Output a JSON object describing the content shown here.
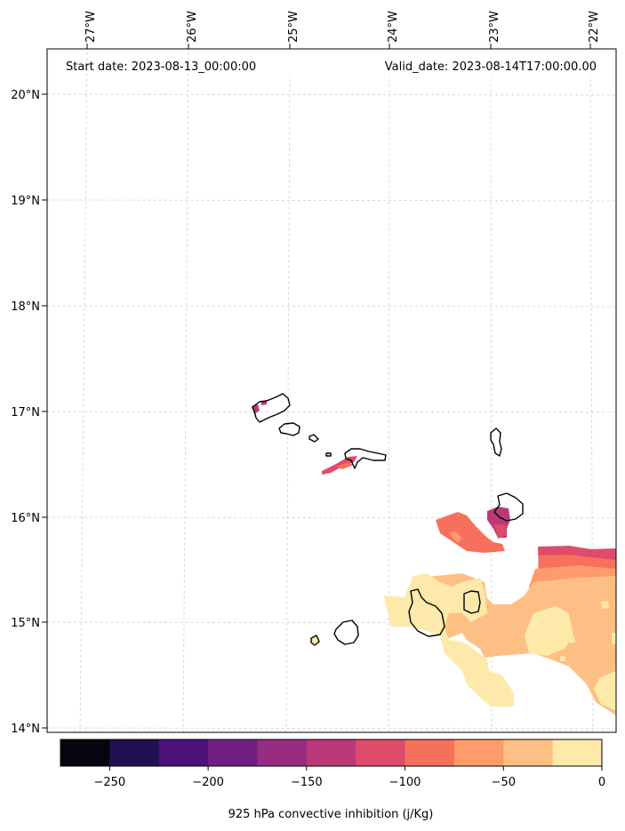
{
  "header": {
    "start_date": "Start date: 2023-08-13_00:00:00",
    "valid_date": "Valid_date: 2023-08-14T17:00:00.00"
  },
  "axes": {
    "lon_ticks": [
      "27°W",
      "26°W",
      "25°W",
      "24°W",
      "23°W",
      "22°W"
    ],
    "lat_ticks": [
      "20°N",
      "19°N",
      "18°N",
      "17°N",
      "16°N",
      "15°N",
      "14°N"
    ],
    "grid": true
  },
  "colorbar": {
    "label": "925 hPa convective inhibition (j/Kg)",
    "tick_labels": [
      "−250",
      "−200",
      "−150",
      "−100",
      "−50",
      "0"
    ],
    "range": [
      -275,
      0
    ],
    "levels": [
      -275,
      -250,
      -225,
      -200,
      -175,
      -150,
      -125,
      -100,
      -75,
      -50,
      -25,
      0
    ],
    "colors": [
      "#05040f",
      "#221150",
      "#4e117a",
      "#721f81",
      "#962c80",
      "#bb3978",
      "#df4b6a",
      "#f6705c",
      "#fe9b6a",
      "#febf84",
      "#fde9a9"
    ]
  }
}
